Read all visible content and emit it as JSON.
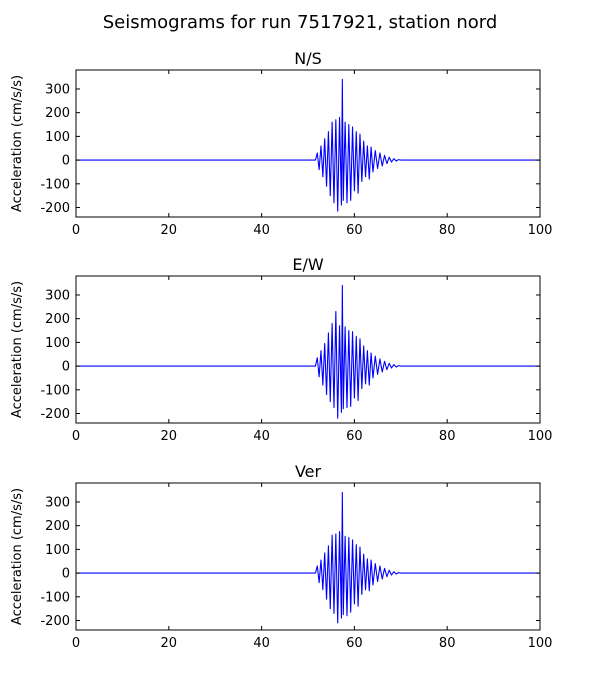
{
  "figure": {
    "title": "Seismograms for run 7517921, station nord"
  },
  "chart_data": [
    {
      "type": "line",
      "title": "N/S",
      "xlabel": "",
      "ylabel": "Acceleration (cm/s/s)",
      "xlim": [
        0,
        100
      ],
      "ylim": [
        -240,
        380
      ],
      "xticks": [
        "0",
        "20",
        "40",
        "60",
        "80",
        "100"
      ],
      "yticks": [
        "-200",
        "-100",
        "0",
        "100",
        "200",
        "300"
      ],
      "series": [
        {
          "color": "#0000ff",
          "x": [
            0,
            50,
            51.6,
            52,
            52.4,
            52.8,
            53.2,
            53.6,
            54,
            54.4,
            54.8,
            55.2,
            55.6,
            56,
            56.4,
            56.8,
            57.2,
            57.4,
            57.6,
            58,
            58.4,
            58.8,
            59.2,
            59.6,
            60,
            60.4,
            60.8,
            61.2,
            61.6,
            62,
            62.4,
            62.8,
            63.2,
            63.6,
            64,
            64.5,
            65,
            65.5,
            66,
            66.5,
            67,
            67.5,
            68,
            68.5,
            69,
            69.5,
            70,
            100
          ],
          "values": [
            0,
            0,
            0,
            30,
            -40,
            60,
            -70,
            90,
            -110,
            120,
            -150,
            160,
            -180,
            170,
            -215,
            180,
            -190,
            340,
            -170,
            160,
            -180,
            150,
            -170,
            140,
            -130,
            120,
            -140,
            110,
            -90,
            80,
            -70,
            60,
            -80,
            55,
            -50,
            40,
            -35,
            30,
            -25,
            20,
            -15,
            12,
            -8,
            6,
            -4,
            2,
            0,
            0
          ]
        }
      ]
    },
    {
      "type": "line",
      "title": "E/W",
      "xlabel": "",
      "ylabel": "Acceleration (cm/s/s)",
      "xlim": [
        0,
        100
      ],
      "ylim": [
        -240,
        380
      ],
      "xticks": [
        "0",
        "20",
        "40",
        "60",
        "80",
        "100"
      ],
      "yticks": [
        "-200",
        "-100",
        "0",
        "100",
        "200",
        "300"
      ],
      "series": [
        {
          "color": "#0000ff",
          "x": [
            0,
            50,
            51.6,
            52,
            52.4,
            52.8,
            53.2,
            53.6,
            54,
            54.4,
            54.8,
            55.2,
            55.6,
            56,
            56.4,
            56.8,
            57.2,
            57.4,
            57.6,
            58,
            58.4,
            58.8,
            59.2,
            59.6,
            60,
            60.4,
            60.8,
            61.2,
            61.6,
            62,
            62.4,
            62.8,
            63.2,
            63.6,
            64,
            64.5,
            65,
            65.5,
            66,
            66.5,
            67,
            67.5,
            68,
            68.5,
            69,
            69.5,
            70,
            100
          ],
          "values": [
            0,
            0,
            0,
            35,
            -45,
            65,
            -80,
            95,
            -120,
            140,
            -150,
            180,
            -175,
            230,
            -220,
            170,
            -195,
            340,
            -180,
            165,
            -175,
            150,
            -170,
            145,
            -135,
            125,
            -145,
            115,
            -95,
            85,
            -75,
            65,
            -80,
            55,
            -50,
            42,
            -35,
            30,
            -25,
            20,
            -15,
            12,
            -8,
            6,
            -4,
            2,
            0,
            0
          ]
        }
      ]
    },
    {
      "type": "line",
      "title": "Ver",
      "xlabel": "",
      "ylabel": "Acceleration (cm/s/s)",
      "xlim": [
        0,
        100
      ],
      "ylim": [
        -240,
        380
      ],
      "xticks": [
        "0",
        "20",
        "40",
        "60",
        "80",
        "100"
      ],
      "yticks": [
        "-200",
        "-100",
        "0",
        "100",
        "200",
        "300"
      ],
      "series": [
        {
          "color": "#0000ff",
          "x": [
            0,
            50,
            51.6,
            52,
            52.4,
            52.8,
            53.2,
            53.6,
            54,
            54.4,
            54.8,
            55.2,
            55.6,
            56,
            56.4,
            56.8,
            57.2,
            57.4,
            57.6,
            58,
            58.4,
            58.8,
            59.2,
            59.6,
            60,
            60.4,
            60.8,
            61.2,
            61.6,
            62,
            62.4,
            62.8,
            63.2,
            63.6,
            64,
            64.5,
            65,
            65.5,
            66,
            66.5,
            67,
            67.5,
            68,
            68.5,
            69,
            69.5,
            70,
            100
          ],
          "values": [
            0,
            0,
            0,
            30,
            -40,
            55,
            -70,
            85,
            -110,
            115,
            -150,
            160,
            -170,
            165,
            -210,
            175,
            -190,
            340,
            -175,
            155,
            -180,
            150,
            -165,
            140,
            -130,
            120,
            -140,
            110,
            -90,
            80,
            -70,
            60,
            -75,
            55,
            -50,
            40,
            -35,
            30,
            -25,
            20,
            -15,
            12,
            -8,
            6,
            -4,
            2,
            0,
            0
          ]
        }
      ]
    }
  ]
}
